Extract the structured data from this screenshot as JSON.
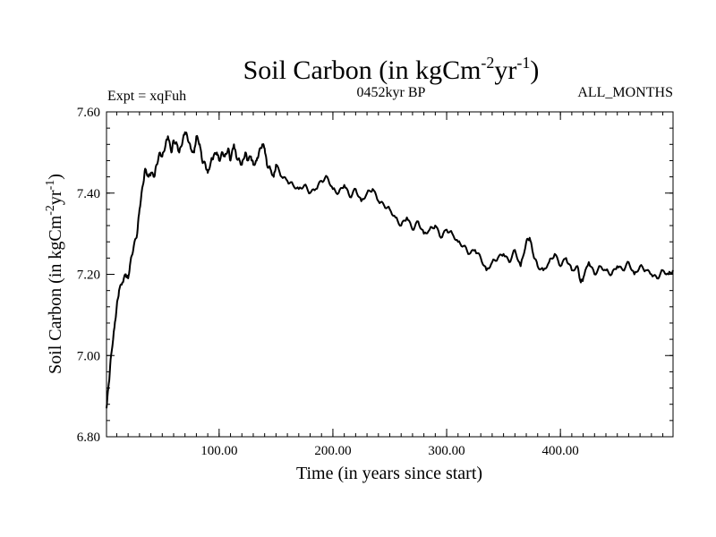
{
  "chart_data": {
    "type": "line",
    "title": "Soil Carbon (in kgCm",
    "title_sup1": "-2",
    "title_mid": "yr",
    "title_sup2": "-1",
    "title_end": ")",
    "left_label": "Expt = xqFuh",
    "center_label": "0452kyr BP",
    "right_label": "ALL_MONTHS",
    "xlabel": "Time (in years since start)",
    "ylabel": "Soil Carbon (in kgCm",
    "ylabel_sup1": "-2",
    "ylabel_mid": "yr",
    "ylabel_sup2": "-1",
    "ylabel_end": ")",
    "xlim": [
      1,
      499
    ],
    "ylim": [
      6.8,
      7.6
    ],
    "xticks": [
      {
        "value": 100,
        "label": "100.00"
      },
      {
        "value": 200,
        "label": "200.00"
      },
      {
        "value": 300,
        "label": "300.00"
      },
      {
        "value": 400,
        "label": "400.00"
      }
    ],
    "yticks": [
      {
        "value": 6.8,
        "label": "6.80"
      },
      {
        "value": 7.0,
        "label": "7.00"
      },
      {
        "value": 7.2,
        "label": "7.20"
      },
      {
        "value": 7.4,
        "label": "7.40"
      },
      {
        "value": 7.6,
        "label": "7.60"
      }
    ],
    "series": [
      {
        "name": "Soil Carbon",
        "color": "#000000",
        "x": [
          1,
          3,
          5,
          8,
          10,
          12,
          15,
          18,
          20,
          22,
          25,
          28,
          30,
          33,
          35,
          38,
          40,
          43,
          45,
          48,
          50,
          53,
          55,
          58,
          60,
          63,
          65,
          68,
          70,
          72,
          75,
          78,
          80,
          83,
          85,
          88,
          90,
          93,
          95,
          98,
          100,
          103,
          105,
          108,
          110,
          113,
          115,
          118,
          120,
          123,
          125,
          128,
          130,
          133,
          135,
          138,
          140,
          142,
          145,
          148,
          150,
          155,
          160,
          165,
          170,
          175,
          180,
          185,
          190,
          195,
          200,
          205,
          210,
          215,
          220,
          225,
          230,
          235,
          240,
          245,
          250,
          255,
          260,
          265,
          270,
          275,
          280,
          285,
          290,
          295,
          300,
          305,
          310,
          315,
          320,
          325,
          330,
          335,
          340,
          345,
          350,
          355,
          360,
          365,
          370,
          373,
          376,
          380,
          385,
          390,
          395,
          400,
          405,
          410,
          415,
          418,
          420,
          425,
          430,
          435,
          440,
          445,
          450,
          455,
          460,
          465,
          470,
          475,
          480,
          485,
          490,
          495,
          499
        ],
        "values": [
          6.87,
          6.93,
          7.0,
          7.07,
          7.12,
          7.16,
          7.18,
          7.2,
          7.19,
          7.23,
          7.27,
          7.3,
          7.36,
          7.42,
          7.46,
          7.44,
          7.45,
          7.44,
          7.47,
          7.5,
          7.49,
          7.52,
          7.54,
          7.5,
          7.53,
          7.52,
          7.5,
          7.53,
          7.55,
          7.54,
          7.51,
          7.5,
          7.54,
          7.52,
          7.48,
          7.47,
          7.45,
          7.48,
          7.49,
          7.5,
          7.48,
          7.5,
          7.49,
          7.51,
          7.48,
          7.52,
          7.49,
          7.48,
          7.47,
          7.5,
          7.48,
          7.49,
          7.47,
          7.48,
          7.5,
          7.52,
          7.51,
          7.47,
          7.46,
          7.44,
          7.47,
          7.44,
          7.43,
          7.42,
          7.41,
          7.42,
          7.4,
          7.41,
          7.43,
          7.44,
          7.41,
          7.4,
          7.42,
          7.39,
          7.41,
          7.38,
          7.4,
          7.41,
          7.38,
          7.37,
          7.36,
          7.34,
          7.32,
          7.34,
          7.31,
          7.33,
          7.3,
          7.31,
          7.32,
          7.29,
          7.31,
          7.3,
          7.28,
          7.27,
          7.25,
          7.26,
          7.24,
          7.21,
          7.23,
          7.24,
          7.25,
          7.23,
          7.26,
          7.22,
          7.28,
          7.29,
          7.25,
          7.22,
          7.21,
          7.23,
          7.25,
          7.22,
          7.24,
          7.21,
          7.22,
          7.18,
          7.19,
          7.23,
          7.2,
          7.22,
          7.21,
          7.2,
          7.22,
          7.21,
          7.23,
          7.2,
          7.22,
          7.21,
          7.2,
          7.19,
          7.21,
          7.2,
          7.21
        ]
      }
    ]
  }
}
